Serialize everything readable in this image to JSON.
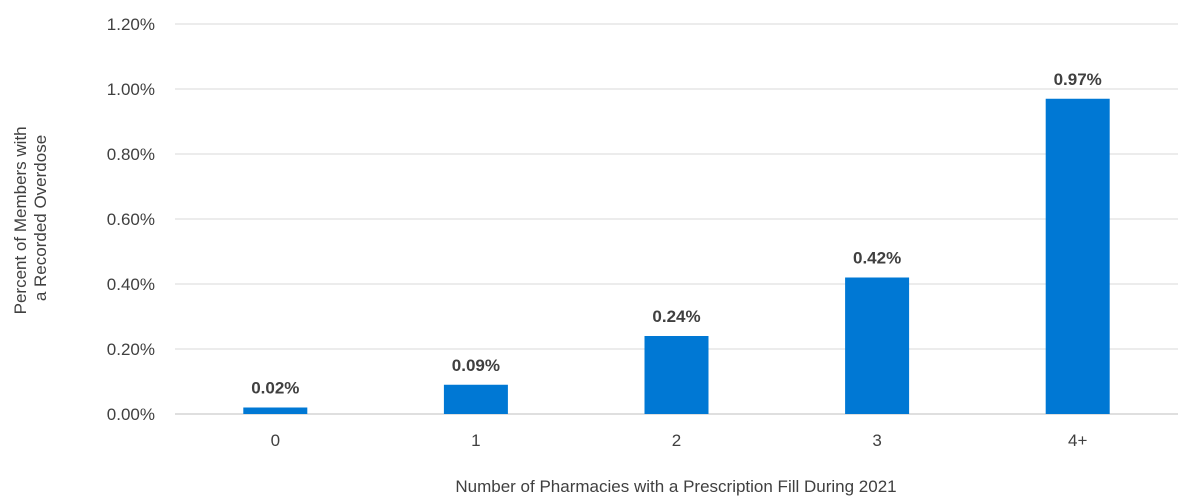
{
  "chart_data": {
    "type": "bar",
    "categories": [
      "0",
      "1",
      "2",
      "3",
      "4+"
    ],
    "values": [
      0.02,
      0.09,
      0.24,
      0.42,
      0.97
    ],
    "data_labels": [
      "0.02%",
      "0.09%",
      "0.24%",
      "0.42%",
      "0.97%"
    ],
    "y_ticks": [
      0.0,
      0.2,
      0.4,
      0.6,
      0.8,
      1.0,
      1.2
    ],
    "y_tick_labels": [
      "0.00%",
      "0.20%",
      "0.40%",
      "0.60%",
      "0.80%",
      "1.00%",
      "1.20%"
    ],
    "ylim": [
      0,
      1.2
    ],
    "xlabel": "Number of Pharmacies with a Prescription Fill During 2021",
    "ylabel_lines": [
      "Percent of Members with",
      "a Recorded Overdose"
    ],
    "grid": true,
    "legend": "none",
    "bar_color": "#0078d4"
  }
}
